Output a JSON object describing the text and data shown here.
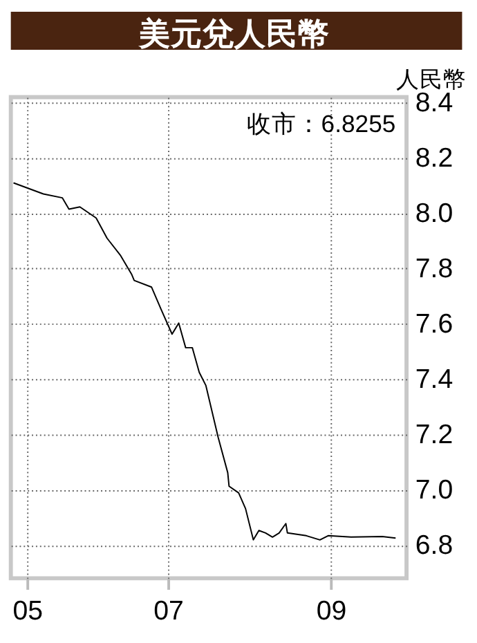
{
  "chart_data": {
    "type": "line",
    "title": "美元兌人民幣",
    "ylabel": "人民幣",
    "annotations": [
      "收市：6.8255"
    ],
    "x": [
      "2005-07-20",
      "2005-12-01",
      "2006-02-24",
      "2006-03-26",
      "2006-05-14",
      "2006-07-26",
      "2006-09-13",
      "2006-11-13",
      "2007-01-01",
      "2007-01-13",
      "2007-04-01",
      "2007-05-14",
      "2007-07-02",
      "2007-08-01",
      "2007-09-01",
      "2007-10-01",
      "2007-11-01",
      "2007-12-01",
      "2008-01-25",
      "2008-03-08",
      "2008-03-14",
      "2008-04-26",
      "2008-05-27",
      "2008-07-01",
      "2008-07-26",
      "2008-08-25",
      "2008-09-25",
      "2008-10-25",
      "2008-11-24",
      "2008-12-01",
      "2009-02-24",
      "2009-04-26",
      "2009-06-02",
      "2009-09-13",
      "2010-01-31",
      "2010-04-01"
    ],
    "series": [
      {
        "color": "#000000",
        "values": [
          8.11,
          8.07,
          8.056,
          8.015,
          8.023,
          7.983,
          7.91,
          7.847,
          7.78,
          7.757,
          7.733,
          7.652,
          7.563,
          7.603,
          7.514,
          7.514,
          7.425,
          7.377,
          7.19,
          7.062,
          7.013,
          6.989,
          6.932,
          6.819,
          6.853,
          6.844,
          6.829,
          6.844,
          6.878,
          6.844,
          6.834,
          6.819,
          6.834,
          6.829,
          6.831,
          6.8255
        ]
      }
    ],
    "xlim": [
      "2005-07-08",
      "2010-05-20"
    ],
    "xticks": [
      {
        "value": "2005-09-19",
        "label": "05"
      },
      {
        "value": "2007-06-14",
        "label": "07"
      },
      {
        "value": "2009-06-14",
        "label": "09"
      }
    ],
    "ylim": [
      6.68,
      8.42
    ],
    "yticks": [
      {
        "value": 6.8,
        "label": "6.8"
      },
      {
        "value": 7.0,
        "label": "7.0"
      },
      {
        "value": 7.2,
        "label": "7.2"
      },
      {
        "value": 7.4,
        "label": "7.4"
      },
      {
        "value": 7.6,
        "label": "7.6"
      },
      {
        "value": 7.8,
        "label": "7.8"
      },
      {
        "value": 8.0,
        "label": "8.0"
      },
      {
        "value": 8.2,
        "label": "8.2"
      },
      {
        "value": 8.4,
        "label": "8.4"
      }
    ],
    "grid": true,
    "marker": "none",
    "line_style": "solid"
  }
}
